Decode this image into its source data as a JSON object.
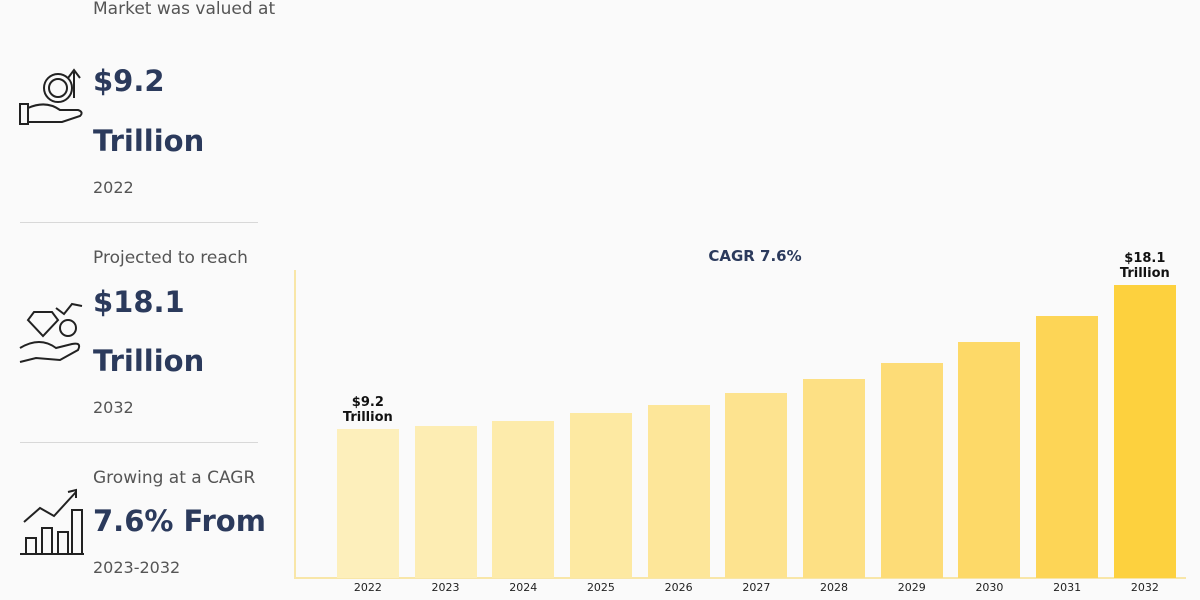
{
  "stats": [
    {
      "intro": "Market was valued at",
      "value": "$9.2",
      "unit": "Trillion",
      "year": "2022"
    },
    {
      "intro": "Projected to reach",
      "value": "$18.1",
      "unit": "Trillion",
      "year": "2032"
    },
    {
      "intro": "Growing at a CAGR",
      "value": "7.6% From",
      "year": "2023-2032"
    }
  ],
  "chart_data": {
    "type": "bar",
    "title": "CAGR 7.6%",
    "categories": [
      "2022",
      "2023",
      "2024",
      "2025",
      "2026",
      "2027",
      "2028",
      "2029",
      "2030",
      "2031",
      "2032"
    ],
    "values": [
      9.2,
      9.4,
      9.7,
      10.2,
      10.7,
      11.4,
      12.3,
      13.3,
      14.6,
      16.2,
      18.1
    ],
    "value_labels": [
      "$9.2 Trillion",
      null,
      null,
      null,
      null,
      null,
      null,
      null,
      null,
      null,
      "$18.1 Trillion"
    ],
    "colors": [
      "#fdefbb",
      "#fdedb3",
      "#fdebab",
      "#fde9a2",
      "#fde699",
      "#fde38f",
      "#fde084",
      "#fddc77",
      "#fdd968",
      "#fdd556",
      "#fdd13e"
    ]
  }
}
